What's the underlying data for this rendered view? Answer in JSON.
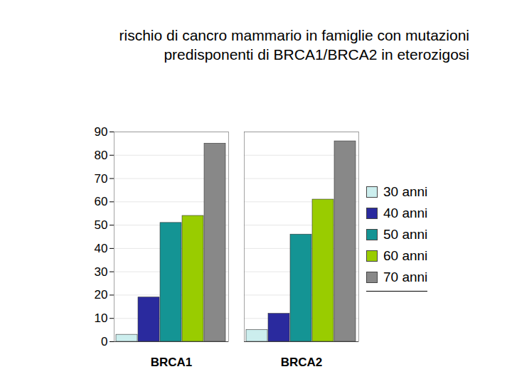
{
  "chart_data": {
    "type": "bar",
    "title": "rischio di cancro mammario in famiglie con mutazioni\npredisponenti di BRCA1/BRCA2 in eterozigosi",
    "categories": [
      "BRCA1",
      "BRCA2"
    ],
    "series": [
      {
        "name": "30 anni",
        "color": "#cceeee",
        "values": [
          3,
          5
        ]
      },
      {
        "name": "40 anni",
        "color": "#2a2a9e",
        "values": [
          19,
          12
        ]
      },
      {
        "name": "50 anni",
        "color": "#149494",
        "values": [
          51,
          46
        ]
      },
      {
        "name": "60 anni",
        "color": "#99cc00",
        "values": [
          54,
          61
        ]
      },
      {
        "name": "70 anni",
        "color": "#888888",
        "values": [
          85,
          86
        ]
      }
    ],
    "ylim": [
      0,
      90
    ],
    "yticks": [
      0,
      10,
      20,
      30,
      40,
      50,
      60,
      70,
      80,
      90
    ],
    "grid": true,
    "legend": "right"
  }
}
